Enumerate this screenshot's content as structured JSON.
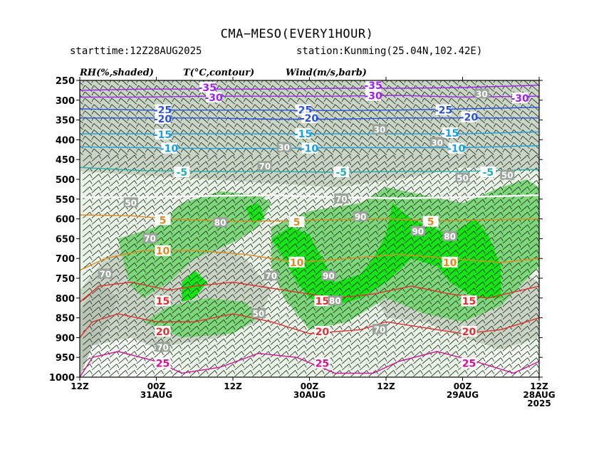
{
  "title": "CMA−MESO(EVERY1HOUR)",
  "starttime": "starttime:12Z28AUG2025",
  "station": "station:Kunming(25.04N,102.42E)",
  "variable_labels": {
    "rh": "RH(%,shaded)",
    "temperature": "T(°C,contour)",
    "wind": "Wind(m/s,barb)"
  },
  "chart_data": {
    "type": "time-pressure cross section",
    "y_axis": {
      "ticks": [
        "250",
        "300",
        "350",
        "400",
        "450",
        "500",
        "550",
        "600",
        "650",
        "700",
        "750",
        "800",
        "850",
        "900",
        "950",
        "1000"
      ],
      "range": [
        1000,
        250
      ]
    },
    "x_axis": {
      "ticks": [
        {
          "hour": 0,
          "line1": "12Z",
          "line2": "",
          "line3": ""
        },
        {
          "hour": 12,
          "line1": "00Z",
          "line2": "31AUG",
          "line3": ""
        },
        {
          "hour": 24,
          "line1": "12Z",
          "line2": "",
          "line3": ""
        },
        {
          "hour": 36,
          "line1": "00Z",
          "line2": "30AUG",
          "line3": ""
        },
        {
          "hour": 48,
          "line1": "12Z",
          "line2": "",
          "line3": ""
        },
        {
          "hour": 60,
          "line1": "00Z",
          "line2": "29AUG",
          "line3": ""
        },
        {
          "hour": 72,
          "line1": "12Z",
          "line2": "28AUG",
          "line3": "2025"
        }
      ],
      "range_hours": [
        0,
        72
      ]
    },
    "temperature_contours": [
      {
        "value": -35,
        "color": "#a020f0",
        "points": [
          [
            0,
            275
          ],
          [
            10,
            272
          ],
          [
            20,
            272
          ],
          [
            30,
            272
          ],
          [
            40,
            270
          ],
          [
            50,
            270
          ],
          [
            60,
            268
          ],
          [
            72,
            262
          ]
        ],
        "labels": [
          [
            20,
            268,
            "-35"
          ],
          [
            46,
            263,
            "-35"
          ]
        ]
      },
      {
        "value": -30,
        "color": "#a020f0",
        "points": [
          [
            0,
            292
          ],
          [
            10,
            292
          ],
          [
            20,
            290
          ],
          [
            30,
            290
          ],
          [
            40,
            290
          ],
          [
            50,
            288
          ],
          [
            60,
            292
          ],
          [
            72,
            290
          ]
        ],
        "labels": [
          [
            21,
            293,
            "-30"
          ],
          [
            46,
            289,
            "-30"
          ],
          [
            69,
            295,
            "-30"
          ]
        ]
      },
      {
        "value": -25,
        "color": "#2850e0",
        "points": [
          [
            0,
            322
          ],
          [
            10,
            325
          ],
          [
            20,
            325
          ],
          [
            30,
            325
          ],
          [
            40,
            326
          ],
          [
            50,
            325
          ],
          [
            60,
            322
          ],
          [
            72,
            318
          ]
        ],
        "labels": [
          [
            13,
            325,
            "-25"
          ],
          [
            35,
            325,
            "-25"
          ],
          [
            57,
            325,
            "-25"
          ]
        ]
      },
      {
        "value": -20,
        "color": "#2850e0",
        "points": [
          [
            0,
            345
          ],
          [
            10,
            345
          ],
          [
            20,
            345
          ],
          [
            30,
            348
          ],
          [
            40,
            348
          ],
          [
            50,
            345
          ],
          [
            60,
            345
          ],
          [
            72,
            345
          ]
        ],
        "labels": [
          [
            13,
            347,
            "-20"
          ],
          [
            36,
            345,
            "-20"
          ],
          [
            61,
            343,
            "-20"
          ]
        ]
      },
      {
        "value": -15,
        "color": "#1aa0e0",
        "points": [
          [
            0,
            385
          ],
          [
            10,
            385
          ],
          [
            20,
            385
          ],
          [
            30,
            385
          ],
          [
            40,
            385
          ],
          [
            50,
            385
          ],
          [
            60,
            385
          ],
          [
            72,
            380
          ]
        ],
        "labels": [
          [
            13,
            387,
            "-15"
          ],
          [
            35,
            385,
            "-15"
          ],
          [
            58,
            383,
            "-15"
          ]
        ]
      },
      {
        "value": -10,
        "color": "#1aa0e0",
        "points": [
          [
            0,
            418
          ],
          [
            10,
            420
          ],
          [
            20,
            422
          ],
          [
            30,
            422
          ],
          [
            40,
            420
          ],
          [
            50,
            420
          ],
          [
            60,
            420
          ],
          [
            72,
            415
          ]
        ],
        "labels": [
          [
            14,
            422,
            "-10"
          ],
          [
            36,
            422,
            "-10"
          ],
          [
            59,
            422,
            "-10"
          ]
        ]
      },
      {
        "value": -5,
        "color": "#20b0b0",
        "points": [
          [
            0,
            470
          ],
          [
            10,
            478
          ],
          [
            20,
            480
          ],
          [
            30,
            480
          ],
          [
            40,
            482
          ],
          [
            50,
            480
          ],
          [
            60,
            480
          ],
          [
            72,
            475
          ]
        ],
        "labels": [
          [
            16,
            482,
            "-5"
          ],
          [
            41,
            482,
            "-5"
          ],
          [
            64,
            482,
            "-5"
          ]
        ]
      },
      {
        "value": 5,
        "color": "#e08a20",
        "points": [
          [
            0,
            590
          ],
          [
            8,
            592
          ],
          [
            14,
            600
          ],
          [
            22,
            605
          ],
          [
            32,
            605
          ],
          [
            40,
            602
          ],
          [
            48,
            600
          ],
          [
            56,
            605
          ],
          [
            64,
            602
          ],
          [
            72,
            600
          ]
        ],
        "labels": [
          [
            13,
            603,
            "5"
          ],
          [
            34,
            608,
            "5"
          ],
          [
            55,
            607,
            "5"
          ]
        ]
      },
      {
        "value": 10,
        "color": "#e08a20",
        "points": [
          [
            0,
            730
          ],
          [
            4,
            700
          ],
          [
            10,
            680
          ],
          [
            18,
            680
          ],
          [
            26,
            690
          ],
          [
            34,
            710
          ],
          [
            42,
            700
          ],
          [
            50,
            690
          ],
          [
            58,
            700
          ],
          [
            66,
            710
          ],
          [
            72,
            700
          ]
        ],
        "labels": [
          [
            13,
            681,
            "10"
          ],
          [
            34,
            710,
            "10"
          ],
          [
            58,
            710,
            "10"
          ]
        ]
      },
      {
        "value": 15,
        "color": "#e03030",
        "points": [
          [
            0,
            810
          ],
          [
            3,
            770
          ],
          [
            8,
            760
          ],
          [
            14,
            780
          ],
          [
            18,
            770
          ],
          [
            24,
            760
          ],
          [
            32,
            780
          ],
          [
            40,
            800
          ],
          [
            46,
            790
          ],
          [
            52,
            770
          ],
          [
            58,
            790
          ],
          [
            64,
            800
          ],
          [
            72,
            770
          ]
        ],
        "labels": [
          [
            13,
            808,
            "15"
          ],
          [
            38,
            808,
            "15"
          ],
          [
            61,
            808,
            "15"
          ]
        ]
      },
      {
        "value": 20,
        "color": "#e03030",
        "points": [
          [
            0,
            900
          ],
          [
            2,
            860
          ],
          [
            6,
            840
          ],
          [
            12,
            860
          ],
          [
            18,
            860
          ],
          [
            24,
            840
          ],
          [
            30,
            860
          ],
          [
            36,
            890
          ],
          [
            44,
            880
          ],
          [
            48,
            860
          ],
          [
            52,
            870
          ],
          [
            56,
            880
          ],
          [
            60,
            890
          ],
          [
            66,
            880
          ],
          [
            72,
            850
          ]
        ],
        "labels": [
          [
            13,
            885,
            "20"
          ],
          [
            38,
            885,
            "20"
          ],
          [
            61,
            885,
            "20"
          ]
        ]
      },
      {
        "value": 25,
        "color": "#d0149a",
        "points": [
          [
            0,
            1000
          ],
          [
            2,
            950
          ],
          [
            6,
            935
          ],
          [
            12,
            960
          ],
          [
            16,
            990
          ],
          [
            22,
            975
          ],
          [
            28,
            940
          ],
          [
            34,
            950
          ],
          [
            40,
            990
          ],
          [
            46,
            990
          ],
          [
            50,
            960
          ],
          [
            56,
            935
          ],
          [
            62,
            960
          ],
          [
            68,
            990
          ],
          [
            72,
            960
          ]
        ],
        "labels": [
          [
            13,
            965,
            "25"
          ],
          [
            38,
            965,
            "25"
          ],
          [
            61,
            965,
            "25"
          ]
        ]
      },
      {
        "value": 0,
        "color": "#ffffff",
        "points": [
          [
            0,
            545
          ],
          [
            10,
            545
          ],
          [
            20,
            542
          ],
          [
            30,
            540
          ],
          [
            40,
            545
          ],
          [
            50,
            548
          ],
          [
            60,
            545
          ],
          [
            72,
            540
          ]
        ],
        "labels": []
      }
    ],
    "rh_labels": [
      {
        "hour": 8,
        "p": 560,
        "text": "50"
      },
      {
        "hour": 11,
        "p": 650,
        "text": "70"
      },
      {
        "hour": 4,
        "p": 740,
        "text": "70"
      },
      {
        "hour": 22,
        "p": 610,
        "text": "80"
      },
      {
        "hour": 29,
        "p": 468,
        "text": "70"
      },
      {
        "hour": 30,
        "p": 745,
        "text": "70"
      },
      {
        "hour": 28,
        "p": 840,
        "text": "50"
      },
      {
        "hour": 13,
        "p": 925,
        "text": "70"
      },
      {
        "hour": 39,
        "p": 745,
        "text": "90"
      },
      {
        "hour": 40,
        "p": 808,
        "text": "80"
      },
      {
        "hour": 44,
        "p": 595,
        "text": "90"
      },
      {
        "hour": 41,
        "p": 550,
        "text": "70"
      },
      {
        "hour": 47,
        "p": 880,
        "text": "70"
      },
      {
        "hour": 53,
        "p": 632,
        "text": "90"
      },
      {
        "hour": 58,
        "p": 645,
        "text": "80"
      },
      {
        "hour": 60,
        "p": 497,
        "text": "50"
      },
      {
        "hour": 67,
        "p": 490,
        "text": "50"
      },
      {
        "hour": 63,
        "p": 285,
        "text": "30"
      },
      {
        "hour": 47,
        "p": 375,
        "text": "30"
      },
      {
        "hour": 32,
        "p": 420,
        "text": "30"
      },
      {
        "hour": 56,
        "p": 408,
        "text": "30"
      }
    ]
  }
}
